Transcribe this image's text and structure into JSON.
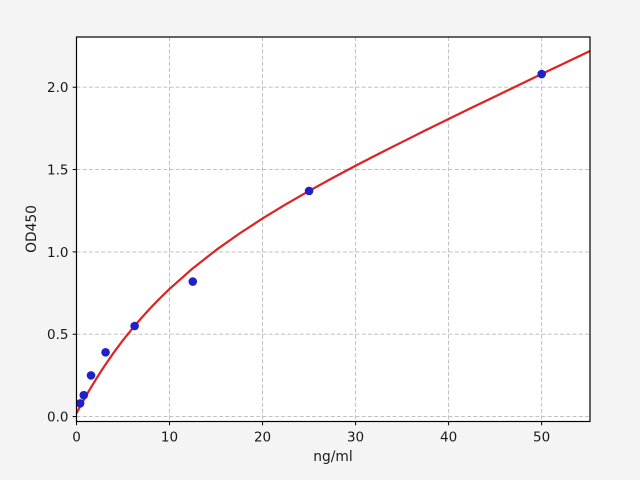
{
  "figure": {
    "background": "#f4f4f4",
    "axes_background": "#ffffff",
    "grid_color": "#b9b9b9",
    "spine_color": "#000000",
    "tick_color": "#000000",
    "text_color": "#1a1a1a"
  },
  "chart_data": {
    "type": "scatter",
    "title": "",
    "xlabel": "ng/ml",
    "ylabel": "OD450",
    "xlim": [
      0,
      55.2
    ],
    "ylim": [
      -0.03,
      2.305
    ],
    "grid": true,
    "grid_style": "dashed",
    "legend": false,
    "xtick_values": [
      0,
      10,
      20,
      30,
      40,
      50
    ],
    "xtick_labels": [
      "0",
      "10",
      "20",
      "30",
      "40",
      "50"
    ],
    "ytick_values": [
      0,
      0.5,
      1.0,
      1.5,
      2.0
    ],
    "ytick_labels": [
      "0.0",
      "0.5",
      "1.0",
      "1.5",
      "2.0"
    ],
    "series": [
      {
        "name": "fitted-curve",
        "type": "line",
        "color": "#dc2222",
        "line_width": 2.2,
        "points": [
          [
            0,
            0.02
          ],
          [
            0.25,
            0.047
          ],
          [
            0.5,
            0.073
          ],
          [
            0.75,
            0.098
          ],
          [
            1,
            0.123
          ],
          [
            1.25,
            0.148
          ],
          [
            1.56,
            0.177
          ],
          [
            2,
            0.218
          ],
          [
            2.5,
            0.263
          ],
          [
            3,
            0.306
          ],
          [
            4,
            0.388
          ],
          [
            5,
            0.464
          ],
          [
            6,
            0.534
          ],
          [
            7,
            0.6
          ],
          [
            8,
            0.662
          ],
          [
            9,
            0.72
          ],
          [
            10,
            0.775
          ],
          [
            12.5,
            0.9
          ],
          [
            15,
            1.011
          ],
          [
            17.5,
            1.111
          ],
          [
            20,
            1.203
          ],
          [
            22.5,
            1.289
          ],
          [
            25,
            1.37
          ],
          [
            27.5,
            1.448
          ],
          [
            30,
            1.523
          ],
          [
            32.5,
            1.596
          ],
          [
            35,
            1.667
          ],
          [
            37.5,
            1.738
          ],
          [
            40,
            1.807
          ],
          [
            42.5,
            1.876
          ],
          [
            45,
            1.944
          ],
          [
            47.5,
            2.012
          ],
          [
            50,
            2.08
          ],
          [
            52.5,
            2.147
          ],
          [
            55.2,
            2.22
          ]
        ]
      },
      {
        "name": "standard-points",
        "type": "scatter",
        "color": "#2121cc",
        "marker_radius": 4.3,
        "x": [
          0.39,
          0.78,
          1.56,
          3.125,
          6.25,
          12.5,
          25,
          50
        ],
        "y": [
          0.08,
          0.13,
          0.25,
          0.39,
          0.55,
          0.82,
          1.37,
          2.08
        ]
      }
    ]
  }
}
